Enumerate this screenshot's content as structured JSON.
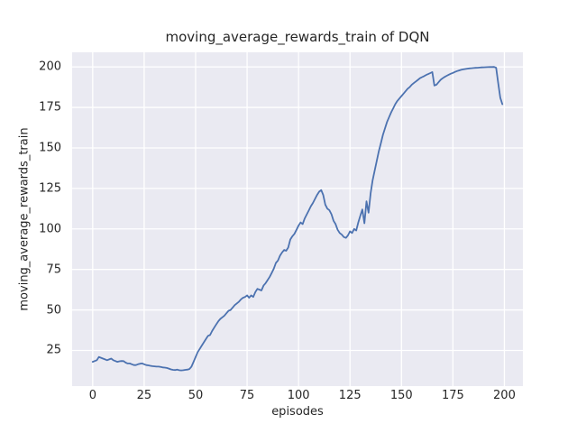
{
  "chart_data": {
    "type": "line",
    "title": "moving_average_rewards_train of DQN",
    "xlabel": "episodes",
    "ylabel": "moving_average_rewards_train",
    "x_ticks": [
      0,
      25,
      50,
      75,
      100,
      125,
      150,
      175,
      200
    ],
    "y_ticks": [
      25,
      50,
      75,
      100,
      125,
      150,
      175,
      200
    ],
    "xlim": [
      -10,
      209
    ],
    "ylim": [
      3,
      209
    ],
    "grid": true,
    "legend": "none",
    "axes_bg_color": "#eaeaf2",
    "grid_color": "#ffffff",
    "line_color": "#4c72b0",
    "text_color": "#262626",
    "series": [
      {
        "name": "moving_average_rewards_train",
        "x_start": 0,
        "x_step": 1,
        "values": [
          18,
          18.5,
          19,
          21,
          20.5,
          20,
          19.5,
          19,
          19.5,
          20,
          19,
          18.5,
          18,
          18.3,
          18.5,
          18.4,
          17.5,
          17,
          17,
          16.5,
          16,
          16,
          16.5,
          16.8,
          17,
          16.5,
          16,
          15.8,
          15.5,
          15.3,
          15.2,
          15,
          15,
          14.8,
          14.5,
          14.4,
          14.2,
          13.8,
          13.3,
          13,
          12.9,
          13.2,
          12.8,
          12.7,
          12.8,
          13,
          13.2,
          13.5,
          15,
          18,
          21,
          24,
          26,
          28,
          30,
          32,
          34,
          34.5,
          37,
          39,
          41,
          43,
          44.5,
          45.5,
          46.5,
          48,
          49.5,
          50,
          51.5,
          53,
          54,
          55,
          56.5,
          57.5,
          58,
          59,
          57.5,
          59,
          58,
          61,
          63,
          62.5,
          62,
          65,
          66.5,
          68.5,
          70.5,
          73,
          75.5,
          79,
          80.5,
          83.5,
          85.5,
          87,
          86.5,
          88.5,
          93.5,
          95.5,
          97,
          99.5,
          102,
          104,
          103,
          106.5,
          109,
          111.5,
          114,
          116,
          118.5,
          121,
          123,
          124,
          121,
          115,
          112.5,
          111.5,
          109,
          105,
          103,
          99.5,
          97.5,
          96.5,
          95,
          94.5,
          96,
          98.5,
          97.5,
          100,
          99,
          104,
          108,
          112,
          103.5,
          117,
          110,
          122,
          130,
          136,
          142,
          148,
          153,
          158,
          162,
          166,
          169,
          172,
          174.5,
          177,
          179,
          180.5,
          182,
          183.5,
          185,
          186.5,
          187.5,
          189,
          190,
          191,
          192,
          193,
          193.7,
          194.3,
          195,
          195.6,
          196.2,
          196.8,
          188.5,
          189,
          190.5,
          192,
          193,
          193.8,
          194.5,
          195.2,
          195.8,
          196.3,
          196.9,
          197.4,
          197.8,
          198.2,
          198.5,
          198.7,
          198.9,
          199.1,
          199.2,
          199.3,
          199.4,
          199.5,
          199.6,
          199.7,
          199.75,
          199.8,
          199.85,
          199.9,
          199.95,
          200,
          199.5,
          190,
          181,
          177
        ]
      }
    ]
  }
}
